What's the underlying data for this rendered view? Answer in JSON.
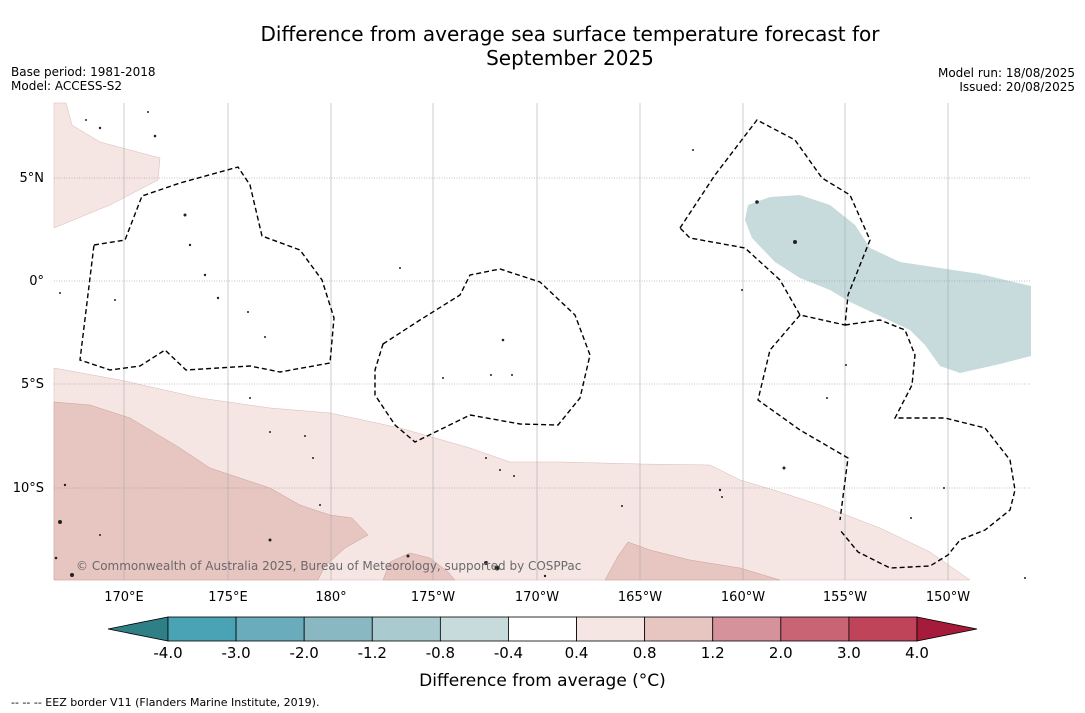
{
  "title_line1": "Difference from average sea surface temperature forecast for",
  "title_line2": "September 2025",
  "base_period": "Base period: 1981-2018",
  "model": "Model: ACCESS-S2",
  "model_run": "Model run: 18/08/2025",
  "issued": "Issued: 20/08/2025",
  "lon_labels": [
    "170°E",
    "175°E",
    "180°",
    "175°W",
    "170°W",
    "165°W",
    "160°W",
    "155°W",
    "150°W"
  ],
  "lat_labels": [
    "5°N",
    "0°",
    "5°S",
    "10°S"
  ],
  "copyright": "© Commonwealth of Australia 2025, Bureau of Meteorology, supported by COSPPac",
  "colorbar": {
    "label": "Difference from average (°C)",
    "ticks": [
      "-4.0",
      "-3.0",
      "-2.0",
      "-1.2",
      "-0.8",
      "-0.4",
      "0.4",
      "0.8",
      "1.2",
      "2.0",
      "3.0",
      "4.0"
    ],
    "colors": [
      "#2f7f86",
      "#4aa3b4",
      "#6aacbb",
      "#89b8c3",
      "#a9cacf",
      "#c7dadc",
      "#ffffff",
      "#f5e6e4",
      "#e7c5c1",
      "#d6929a",
      "#c96475",
      "#bf4459",
      "#a71b3a"
    ]
  },
  "map_colors": {
    "light_warm": "#f5e6e4",
    "warm": "#e7c5c1",
    "cool": "#c7dadc"
  },
  "footnote": "-- -- -- EEZ border V11 (Flanders Marine Institute, 2019)."
}
